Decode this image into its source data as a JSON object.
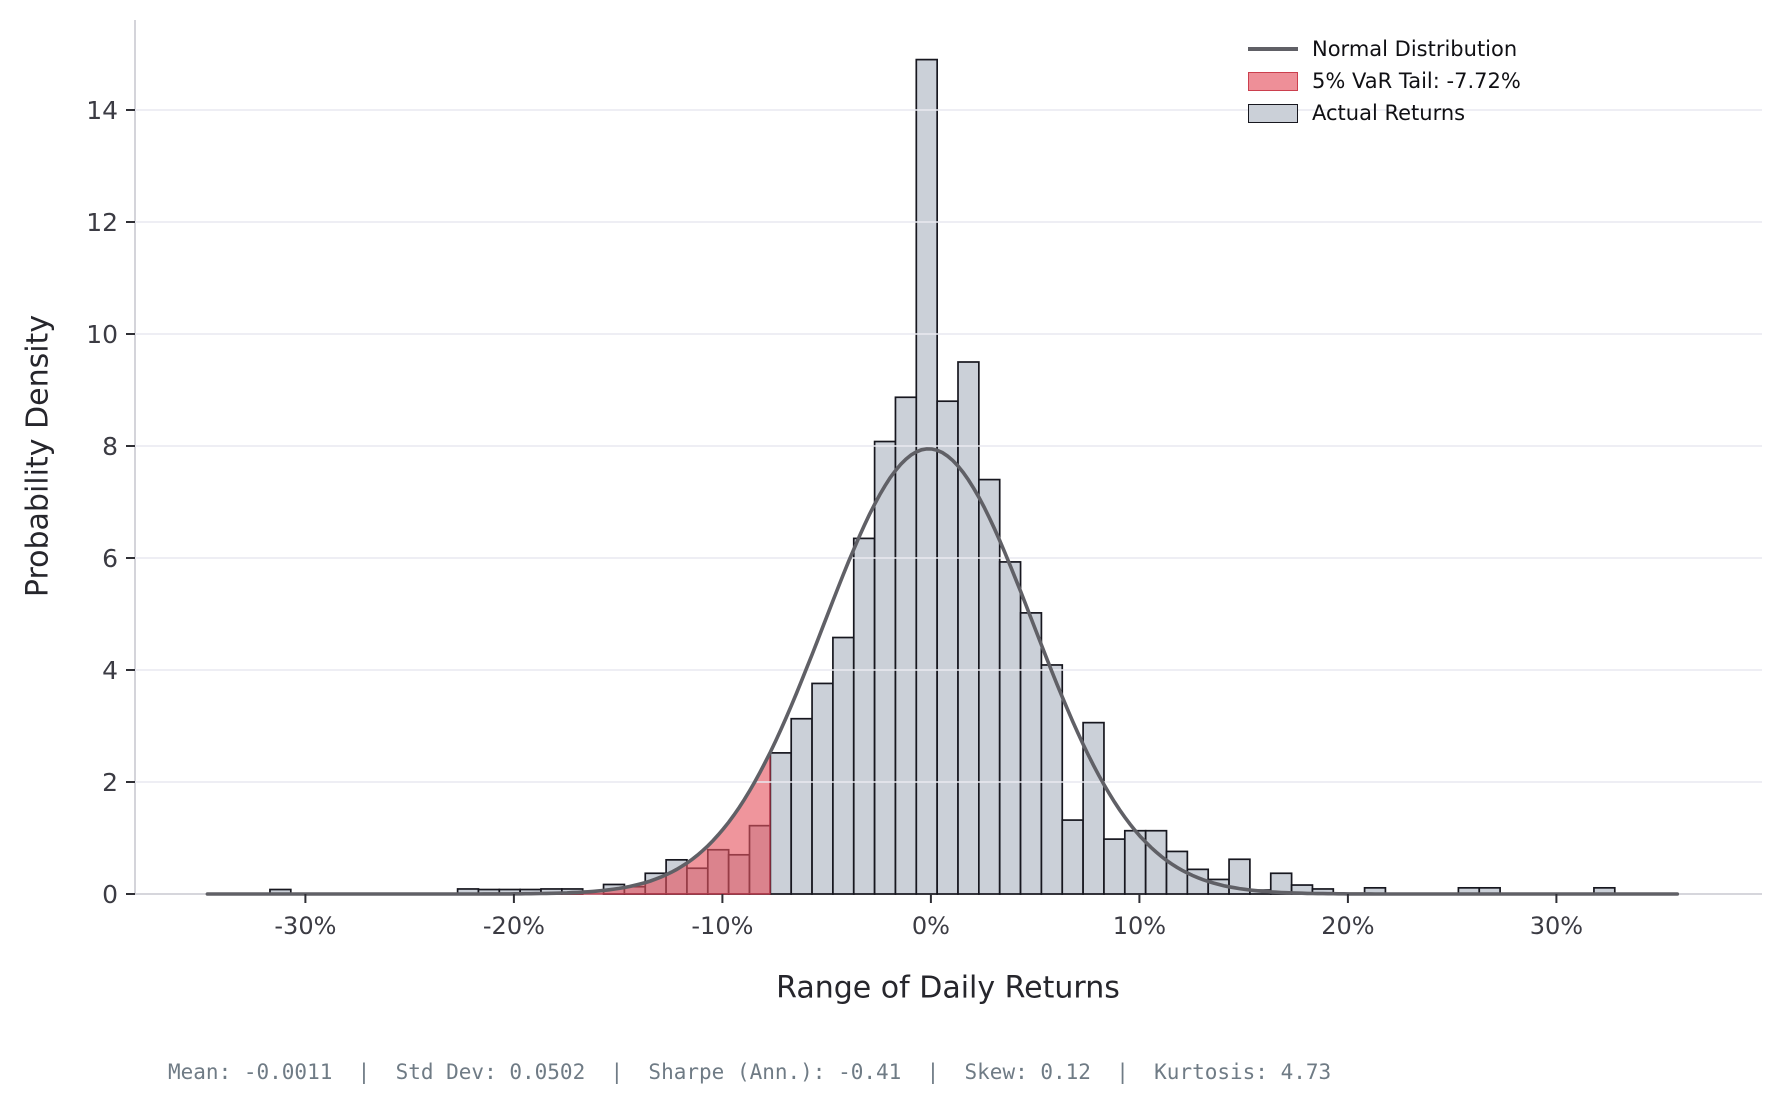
{
  "chart_data": {
    "type": "bar",
    "subtype": "histogram-with-normal-overlay",
    "title": "",
    "xlabel": "Range of Daily Returns",
    "ylabel": "Probability Density",
    "x_ticks_pct": [
      -30,
      -20,
      -10,
      0,
      10,
      20,
      30
    ],
    "x_tick_labels": [
      "-30%",
      "-20%",
      "-10%",
      "0%",
      "10%",
      "20%",
      "30%"
    ],
    "y_ticks": [
      0,
      2,
      4,
      6,
      8,
      10,
      12,
      14
    ],
    "ylim": [
      0,
      15.6
    ],
    "xlim_pct": [
      -38.2,
      39.9
    ],
    "grid": "horizontal-only",
    "legend_position": "upper-right",
    "bin_width_pct": 1.0,
    "bars": [
      {
        "x": -31.2,
        "h": 0.08
      },
      {
        "x": -22.2,
        "h": 0.09
      },
      {
        "x": -21.2,
        "h": 0.08
      },
      {
        "x": -20.2,
        "h": 0.08
      },
      {
        "x": -19.2,
        "h": 0.08
      },
      {
        "x": -18.2,
        "h": 0.09
      },
      {
        "x": -17.2,
        "h": 0.09
      },
      {
        "x": -15.2,
        "h": 0.17
      },
      {
        "x": -14.2,
        "h": 0.13
      },
      {
        "x": -13.2,
        "h": 0.37
      },
      {
        "x": -12.2,
        "h": 0.61
      },
      {
        "x": -11.2,
        "h": 0.46
      },
      {
        "x": -10.2,
        "h": 0.79
      },
      {
        "x": -9.2,
        "h": 0.7
      },
      {
        "x": -8.2,
        "h": 1.22
      },
      {
        "x": -7.2,
        "h": 2.52
      },
      {
        "x": -6.2,
        "h": 3.13
      },
      {
        "x": -5.2,
        "h": 3.76
      },
      {
        "x": -4.2,
        "h": 4.58
      },
      {
        "x": -3.2,
        "h": 6.35
      },
      {
        "x": -2.2,
        "h": 8.08
      },
      {
        "x": -1.2,
        "h": 8.87
      },
      {
        "x": -0.2,
        "h": 14.9
      },
      {
        "x": 0.8,
        "h": 8.8
      },
      {
        "x": 1.8,
        "h": 9.5
      },
      {
        "x": 2.8,
        "h": 7.4
      },
      {
        "x": 3.8,
        "h": 5.93
      },
      {
        "x": 4.8,
        "h": 5.02
      },
      {
        "x": 5.8,
        "h": 4.09
      },
      {
        "x": 6.8,
        "h": 1.32
      },
      {
        "x": 7.8,
        "h": 3.06
      },
      {
        "x": 8.8,
        "h": 0.98
      },
      {
        "x": 9.8,
        "h": 1.13
      },
      {
        "x": 10.8,
        "h": 1.13
      },
      {
        "x": 11.8,
        "h": 0.76
      },
      {
        "x": 12.8,
        "h": 0.44
      },
      {
        "x": 13.8,
        "h": 0.26
      },
      {
        "x": 14.8,
        "h": 0.62
      },
      {
        "x": 15.8,
        "h": 0.07
      },
      {
        "x": 16.8,
        "h": 0.37
      },
      {
        "x": 17.8,
        "h": 0.16
      },
      {
        "x": 18.8,
        "h": 0.09
      },
      {
        "x": 21.3,
        "h": 0.11
      },
      {
        "x": 25.8,
        "h": 0.11
      },
      {
        "x": 26.8,
        "h": 0.11
      },
      {
        "x": 32.3,
        "h": 0.11
      }
    ],
    "normal_curve": {
      "mean_pct": -0.11,
      "sigma_pct": 5.02,
      "peak_density": 7.95,
      "x_range_pct": [
        -34.7,
        36.0
      ]
    },
    "var_threshold_pct": -7.72,
    "colors": {
      "bar_fill": "#cbd0d8",
      "bar_edge": "#17171f",
      "var_fill": "rgba(229,84,95,0.62)",
      "var_edge": "rgba(181,55,74,0.9)",
      "curve": "#606066",
      "grid": "#e9e9f0",
      "spine": "#c9c9d0",
      "tick_mark": "#2f2f35",
      "tick_label": "#3b3b43"
    }
  },
  "legend": {
    "normal_label": "Normal Distribution",
    "var_label": "5% VaR Tail: -7.72%",
    "actual_label": "Actual Returns"
  },
  "axis": {
    "xlabel": "Range of Daily Returns",
    "ylabel": "Probability Density"
  },
  "stats_line": "Mean: -0.0011  |  Std Dev: 0.0502  |  Sharpe (Ann.): -0.41  |  Skew: 0.12  |  Kurtosis: 4.73"
}
